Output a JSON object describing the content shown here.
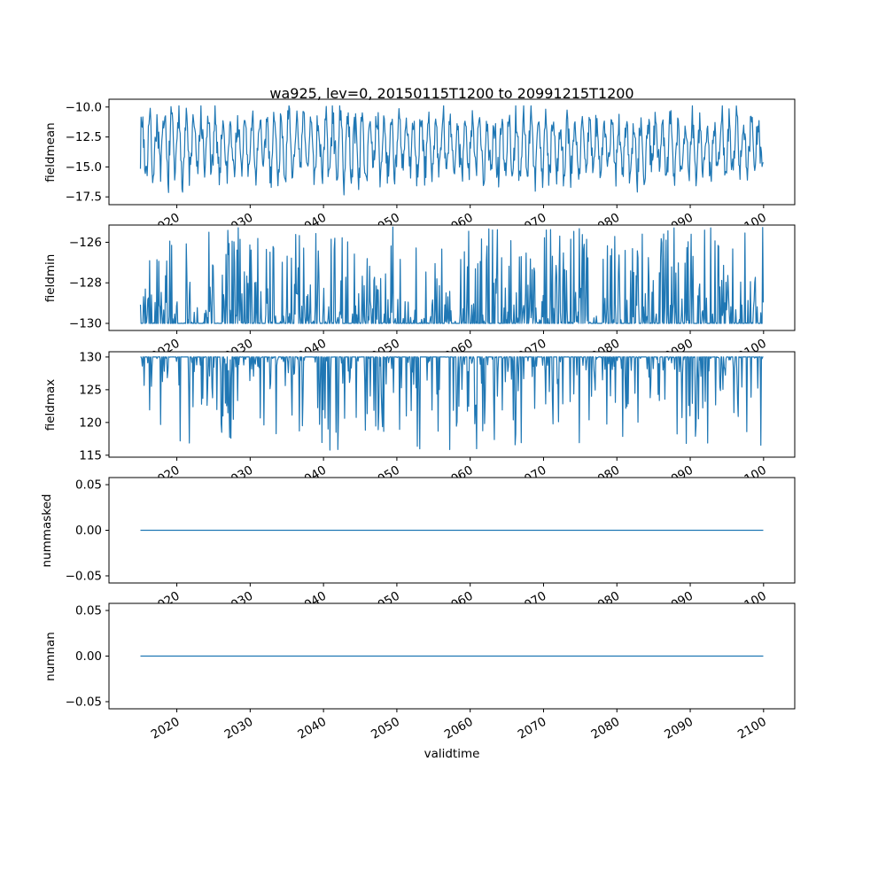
{
  "figure": {
    "title": "wa925, lev=0, 20150115T1200 to 20991215T1200",
    "xlabel": "validtime",
    "background": "#ffffff",
    "line_color": "#1f77b4"
  },
  "x": {
    "start": 2015.04,
    "end": 2099.96,
    "n": 1020,
    "xlim": [
      2010.75,
      2104.25
    ],
    "xticks": [
      {
        "v": 2020,
        "label": "2020"
      },
      {
        "v": 2030,
        "label": "2030"
      },
      {
        "v": 2040,
        "label": "2040"
      },
      {
        "v": 2050,
        "label": "2050"
      },
      {
        "v": 2060,
        "label": "2060"
      },
      {
        "v": 2070,
        "label": "2070"
      },
      {
        "v": 2080,
        "label": "2080"
      },
      {
        "v": 2090,
        "label": "2090"
      },
      {
        "v": 2100,
        "label": "2100"
      }
    ]
  },
  "chart_data": [
    {
      "type": "line",
      "ylabel": "fieldmean",
      "ylim": [
        -18.15,
        -9.35
      ],
      "value_range": [
        -17.6,
        -9.9
      ],
      "yticks": [
        {
          "v": -10.0,
          "label": "−10.0"
        },
        {
          "v": -12.5,
          "label": "−12.5"
        },
        {
          "v": -15.0,
          "label": "−15.0"
        },
        {
          "v": -17.5,
          "label": "−17.5"
        }
      ],
      "series_spec": {
        "kind": "seasonal",
        "base": -13.3,
        "amp": 2.2,
        "period": 12,
        "noise": 2.0,
        "clip": [
          -17.6,
          -9.9
        ],
        "seed": 7
      }
    },
    {
      "type": "line",
      "ylabel": "fieldmin",
      "ylim": [
        -130.35,
        -125.15
      ],
      "value_range": [
        -130.0,
        -125.2
      ],
      "yticks": [
        {
          "v": -126,
          "label": "−126"
        },
        {
          "v": -128,
          "label": "−128"
        },
        {
          "v": -130,
          "label": "−130"
        }
      ],
      "series_spec": {
        "kind": "spikes_up",
        "base": -130,
        "density": 0.55,
        "shape": 2.6,
        "max_spike": 4.8,
        "clip": [
          -130,
          -125.2
        ],
        "seed": 11
      }
    },
    {
      "type": "line",
      "ylabel": "fieldmax",
      "ylim": [
        114.7,
        130.8
      ],
      "value_range": [
        115.5,
        130.0
      ],
      "yticks": [
        {
          "v": 130,
          "label": "130"
        },
        {
          "v": 125,
          "label": "125"
        },
        {
          "v": 120,
          "label": "120"
        },
        {
          "v": 115,
          "label": "115"
        }
      ],
      "series_spec": {
        "kind": "spikes_down",
        "base": 130,
        "density": 0.45,
        "shape": 3.5,
        "max_spike": 14.5,
        "clip": [
          115.5,
          130
        ],
        "seed": 23
      }
    },
    {
      "type": "line",
      "ylabel": "nummasked",
      "ylim": [
        -0.0578,
        0.0578
      ],
      "value_range": [
        0,
        0
      ],
      "yticks": [
        {
          "v": 0.05,
          "label": "0.05"
        },
        {
          "v": 0.0,
          "label": "0.00"
        },
        {
          "v": -0.05,
          "label": "−0.05"
        }
      ],
      "series_spec": {
        "kind": "constant",
        "value": 0,
        "seed": 1
      }
    },
    {
      "type": "line",
      "ylabel": "numnan",
      "ylim": [
        -0.0578,
        0.0578
      ],
      "value_range": [
        0,
        0
      ],
      "yticks": [
        {
          "v": 0.05,
          "label": "0.05"
        },
        {
          "v": 0.0,
          "label": "0.00"
        },
        {
          "v": -0.05,
          "label": "−0.05"
        }
      ],
      "series_spec": {
        "kind": "constant",
        "value": 0,
        "seed": 2
      }
    }
  ]
}
